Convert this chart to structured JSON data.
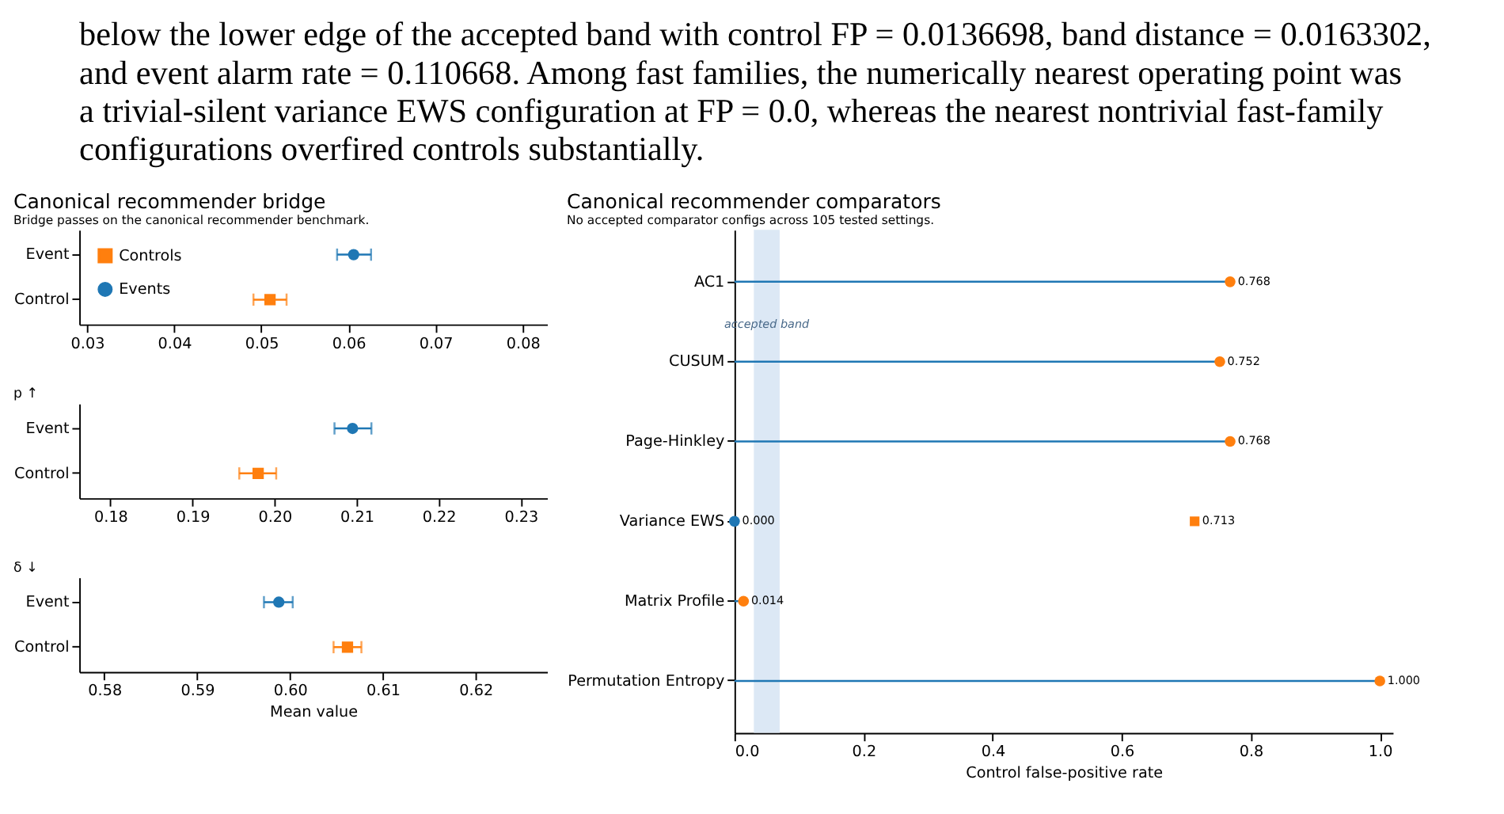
{
  "chart_data": [
    {
      "type": "other",
      "annotations": [
        "below the lower edge of the accepted band with control FP = 0.0136698, band distance = 0.0163302,",
        "and event alarm rate = 0.110668.  Among fast families, the numerically nearest operating point was",
        "a trivial-silent variance EWS configuration at FP = 0.0, whereas the nearest nontrivial fast-family",
        "configurations overfired controls substantially."
      ]
    },
    {
      "type": "scatter",
      "orientation": "horizontal",
      "title": "Canonical recommender bridge",
      "subtitle": "Bridge passes on the canonical recommender benchmark.",
      "categories": [
        "Event",
        "Control"
      ],
      "xlim": [
        0.0291,
        0.0828
      ],
      "xticks": [
        0.03,
        0.04,
        0.05,
        0.06,
        0.07,
        0.08
      ],
      "legend": "top left",
      "series": [
        {
          "name": "Controls",
          "color": "#ff7f0e",
          "marker": "square",
          "values": [
            null,
            0.051
          ],
          "errors": [
            null,
            [
              0.0491,
              0.0529
            ]
          ]
        },
        {
          "name": "Events",
          "color": "#1f77b4",
          "marker": "circle",
          "values": [
            0.0606,
            null
          ],
          "errors": [
            [
              0.0587,
              0.0626
            ],
            null
          ]
        }
      ]
    },
    {
      "type": "scatter",
      "orientation": "horizontal",
      "title": "p ↑",
      "categories": [
        "Event",
        "Control"
      ],
      "xlim": [
        0.1762,
        0.2332
      ],
      "xticks": [
        0.18,
        0.19,
        {
          "value": 0.2,
          "label": "0.20"
        },
        0.21,
        0.22,
        0.23
      ],
      "series": [
        {
          "color": "#ff7f0e",
          "marker": "square",
          "values": [
            null,
            0.198
          ],
          "errors": [
            null,
            [
              0.1957,
              0.2002
            ]
          ]
        },
        {
          "color": "#1f77b4",
          "marker": "circle",
          "values": [
            0.2095,
            null
          ],
          "errors": [
            [
              0.2073,
              0.2118
            ],
            null
          ]
        }
      ]
    },
    {
      "type": "scatter",
      "orientation": "horizontal",
      "title": "δ ↓",
      "xlabel": "Mean value",
      "categories": [
        "Event",
        "Control"
      ],
      "xlim": [
        0.5773,
        0.6277
      ],
      "xticks": [
        0.58,
        0.59,
        {
          "value": 0.6,
          "label": "0.60"
        },
        0.61,
        0.62
      ],
      "series": [
        {
          "color": "#ff7f0e",
          "marker": "square",
          "values": [
            null,
            0.6062
          ],
          "errors": [
            null,
            [
              0.6047,
              0.6077
            ]
          ]
        },
        {
          "color": "#1f77b4",
          "marker": "circle",
          "values": [
            0.5988,
            null
          ],
          "errors": [
            [
              0.5972,
              0.6003
            ],
            null
          ]
        }
      ]
    },
    {
      "type": "lollipop",
      "orientation": "horizontal",
      "title": "Canonical recommender comparators",
      "subtitle": "No accepted comparator configs across 105 tested settings.",
      "xlabel": "Control false-positive rate",
      "categories": [
        "AC1",
        "CUSUM",
        "Page-Hinkley",
        "Variance EWS",
        "Matrix Profile",
        "Permutation Entropy"
      ],
      "xlim": [
        0,
        1.02
      ],
      "xticks": [
        {
          "value": 0,
          "label": "0.0"
        },
        0.2,
        0.4,
        0.6,
        0.8,
        {
          "value": 1,
          "label": "1.0"
        }
      ],
      "bands": [
        {
          "axis": "x",
          "from": 0.03,
          "to": 0.07,
          "label": "accepted band",
          "color": "#dce8f5"
        }
      ],
      "series": [
        {
          "type": "lollipop",
          "color": "#1f77b4",
          "colors": [
            "#ff7f0e",
            "#ff7f0e",
            "#ff7f0e",
            "#1f77b4",
            "#ff7f0e",
            "#ff7f0e"
          ],
          "values": [
            0.768,
            0.752,
            0.768,
            0.0,
            0.014,
            1.0
          ],
          "value_labels": [
            "0.768",
            "0.752",
            "0.768",
            "0.000",
            "0.014",
            "1.000"
          ]
        },
        {
          "type": "scatter",
          "marker": "square",
          "color": "#ff7f0e",
          "values": [
            null,
            null,
            null,
            0.713,
            null,
            null
          ],
          "value_labels": [
            null,
            null,
            null,
            "0.713",
            null,
            null
          ]
        }
      ]
    }
  ]
}
